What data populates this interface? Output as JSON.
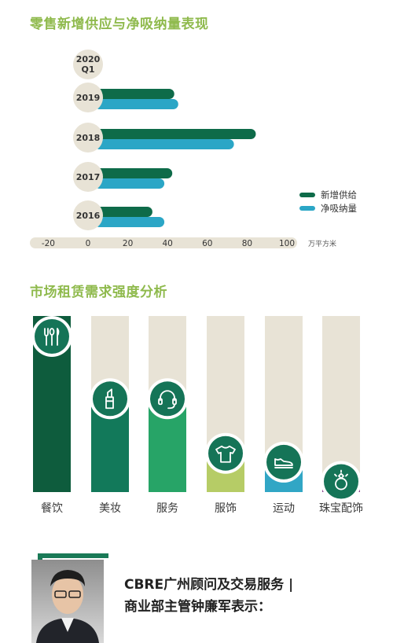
{
  "chart_data": [
    {
      "type": "bar",
      "orientation": "horizontal",
      "title": "零售新增供应与净吸纳量表现",
      "categories": [
        "2020\nQ1",
        "2019",
        "2018",
        "2017",
        "2016"
      ],
      "series": [
        {
          "name": "新增供给",
          "values": [
            0,
            41,
            82,
            40,
            30
          ],
          "color": "#0e6b49"
        },
        {
          "name": "净吸纳量",
          "values": [
            -2,
            43,
            71,
            36,
            36
          ],
          "color": "#2ba6c6"
        }
      ],
      "xticks": [
        "-20",
        "0",
        "20",
        "40",
        "60",
        "80",
        "100"
      ],
      "xlim": [
        -20,
        100
      ],
      "unit": "万平方米",
      "legend": "right"
    },
    {
      "type": "bar",
      "title": "市场租赁需求强度分析",
      "categories": [
        "餐饮",
        "美妆",
        "服务",
        "服饰",
        "运动",
        "珠宝配饰"
      ],
      "values": [
        100,
        53,
        53,
        22,
        17,
        6
      ],
      "ylim": [
        0,
        100
      ],
      "colors": [
        "#0e5c3d",
        "#12795a",
        "#27a467",
        "#b6cc66",
        "#31a6c5",
        "#8a3d8c"
      ],
      "icons": [
        "fork-knife-spoon-icon",
        "lipstick-icon",
        "headset-icon",
        "shirt-icon",
        "sneaker-icon",
        "ring-icon"
      ]
    }
  ],
  "quote": {
    "line1": "CBRE广州顾问及交易服务 |",
    "line2": "商业部主管钟廉军表示："
  }
}
